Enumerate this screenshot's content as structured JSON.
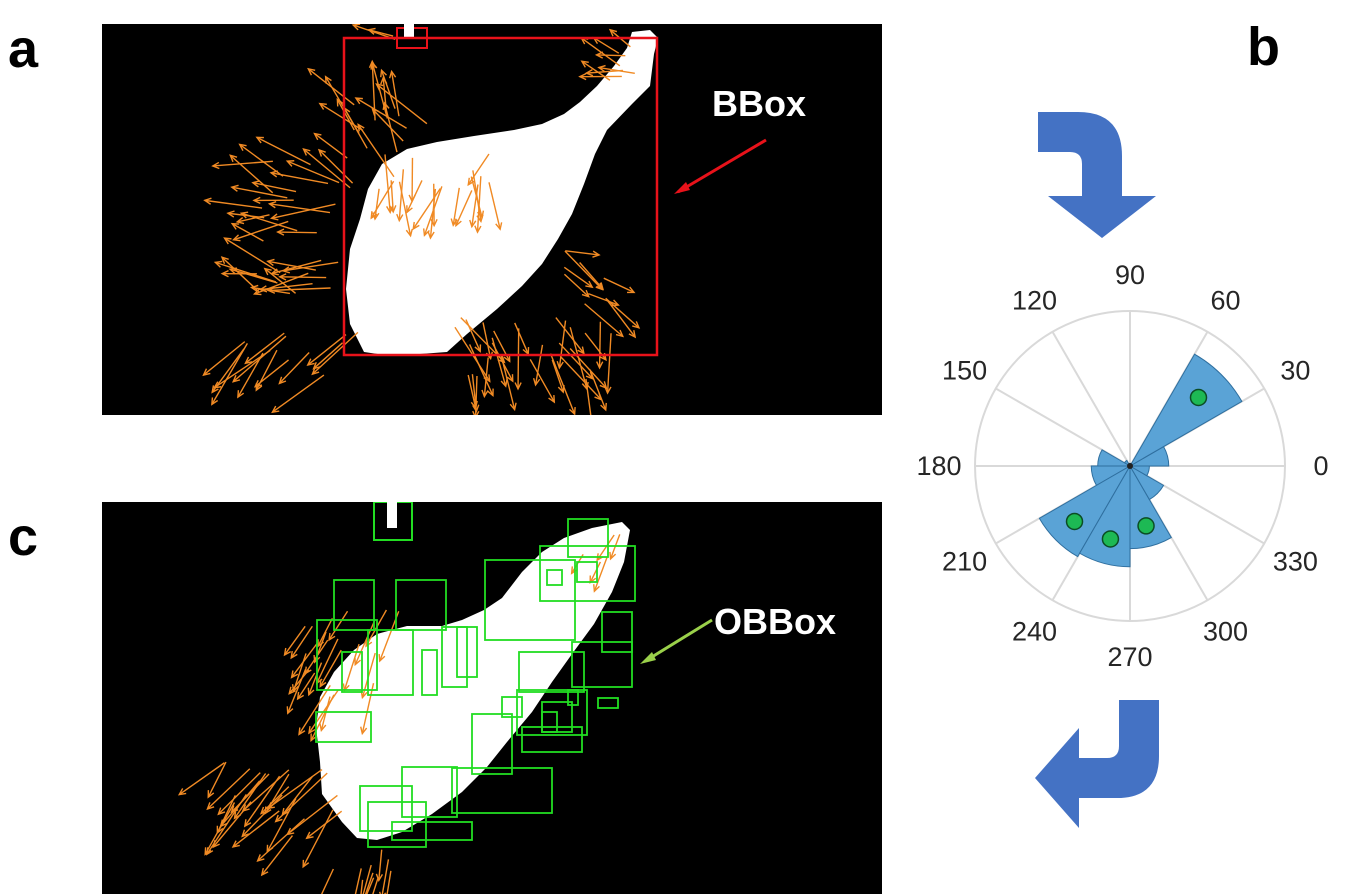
{
  "panels": {
    "a": {
      "letter": "a",
      "label": "BBox"
    },
    "b": {
      "letter": "b"
    },
    "c": {
      "letter": "c",
      "label": "OBBox"
    }
  },
  "colors": {
    "background": "#000000",
    "object": "#ffffff",
    "gradient_arrows": "#f08a24",
    "bbox": "#e8121a",
    "obbox": "#22dd22",
    "obbox_pointer": "#9ad04a",
    "rose_fill": "#5aa3d6",
    "rose_edge": "#2f6f9f",
    "peak_marker": "#1db954",
    "flow_arrow": "#4472c4"
  },
  "icons": {
    "flow_arrow_top": "curved-arrow-down-icon",
    "flow_arrow_bottom": "curved-arrow-left-icon"
  },
  "chart_data": {
    "type": "polar-histogram",
    "angle_ticks": [
      "0",
      "30",
      "60",
      "90",
      "120",
      "150",
      "180",
      "210",
      "240",
      "270",
      "300",
      "330"
    ],
    "bin_width_deg": 30,
    "bins": [
      {
        "start": 0,
        "end": 30,
        "value": 0.3
      },
      {
        "start": 30,
        "end": 60,
        "value": 1.0
      },
      {
        "start": 60,
        "end": 90,
        "value": 0.02
      },
      {
        "start": 90,
        "end": 120,
        "value": 0.02
      },
      {
        "start": 120,
        "end": 150,
        "value": 0.05
      },
      {
        "start": 150,
        "end": 180,
        "value": 0.25
      },
      {
        "start": 180,
        "end": 210,
        "value": 0.3
      },
      {
        "start": 210,
        "end": 240,
        "value": 0.81
      },
      {
        "start": 240,
        "end": 270,
        "value": 0.78
      },
      {
        "start": 270,
        "end": 300,
        "value": 0.64
      },
      {
        "start": 300,
        "end": 330,
        "value": 0.3
      },
      {
        "start": 330,
        "end": 360,
        "value": 0.15
      }
    ],
    "peak_markers_deg": [
      45,
      225,
      255,
      285
    ],
    "rmax": 1.2,
    "grid": true
  }
}
